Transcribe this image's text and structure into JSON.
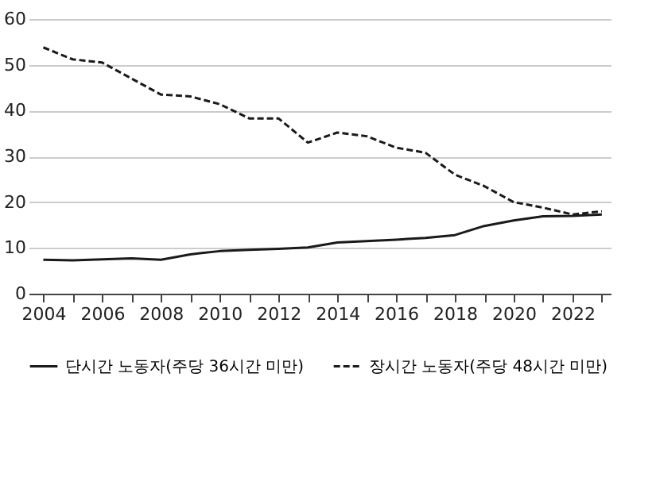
{
  "chart_data": {
    "type": "line",
    "x": [
      2004,
      2005,
      2006,
      2007,
      2008,
      2009,
      2010,
      2011,
      2012,
      2013,
      2014,
      2015,
      2016,
      2017,
      2018,
      2019,
      2020,
      2021,
      2022,
      2023
    ],
    "series": [
      {
        "name": "단시간 노동자(주당 36시간 미만)",
        "color": "#1a1a1a",
        "line_style": "solid",
        "values": [
          7.4,
          7.3,
          7.5,
          7.7,
          7.4,
          8.6,
          9.3,
          9.6,
          9.8,
          10.1,
          11.2,
          11.5,
          11.8,
          12.2,
          12.8,
          14.8,
          16,
          16.9,
          17,
          17.3
        ]
      },
      {
        "name": "장시간 노동자(주당 48시간 미만)",
        "color": "#1a1a1a",
        "line_style": "dashed",
        "values": [
          53.8,
          51.2,
          50.5,
          47,
          43.5,
          43.1,
          41.4,
          38.3,
          38.3,
          33,
          35.2,
          34.4,
          31.9,
          30.8,
          26,
          23.5,
          20,
          18.8,
          17.3,
          18
        ]
      }
    ],
    "xlim": [
      2003.5,
      2023.3
    ],
    "xticks": [
      2004,
      {
        "value": 2005,
        "label": null
      },
      2006,
      {
        "value": 2007,
        "label": null
      },
      2008,
      {
        "value": 2009,
        "label": null
      },
      2010,
      {
        "value": 2011,
        "label": null
      },
      2012,
      {
        "value": 2013,
        "label": null
      },
      2014,
      {
        "value": 2015,
        "label": null
      },
      2016,
      {
        "value": 2017,
        "label": null
      },
      2018,
      {
        "value": 2019,
        "label": null
      },
      2020,
      {
        "value": 2021,
        "label": null
      },
      2022,
      {
        "value": 2023,
        "label": null
      }
    ],
    "ylim": [
      0,
      60
    ],
    "yticks": [
      0,
      10,
      20,
      30,
      40,
      50,
      60
    ],
    "grid": "y",
    "legend": "bottom",
    "marker": "none"
  }
}
